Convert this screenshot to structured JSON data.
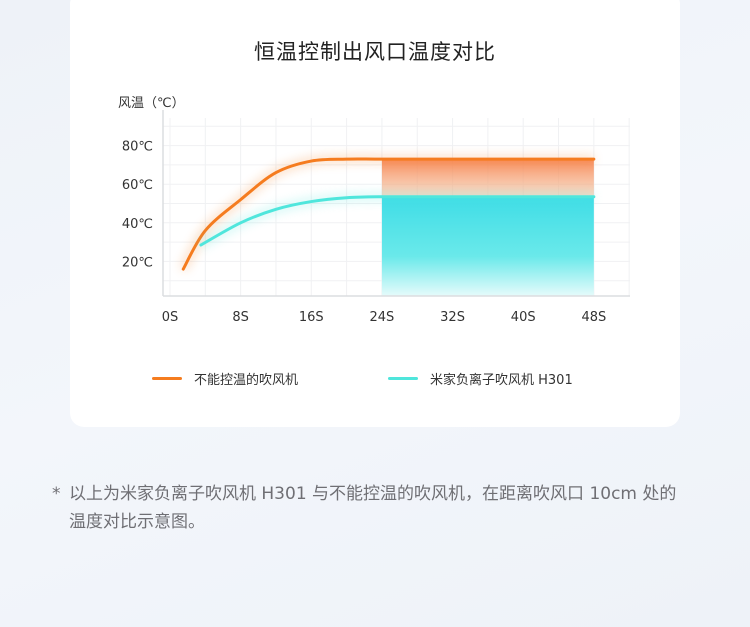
{
  "chart_data": {
    "type": "line",
    "title": "恒温控制出风口温度对比",
    "ylabel": "风温（℃）",
    "xlabel": "",
    "x_ticks": [
      "0S",
      "8S",
      "16S",
      "24S",
      "32S",
      "40S",
      "48S"
    ],
    "x_tick_values": [
      0,
      8,
      16,
      24,
      32,
      40,
      48
    ],
    "y_ticks": [
      "20℃",
      "40℃",
      "60℃",
      "80℃"
    ],
    "y_tick_values": [
      20,
      40,
      60,
      80
    ],
    "xlim": [
      0,
      52
    ],
    "ylim": [
      0,
      90
    ],
    "grid": true,
    "legend_position": "bottom",
    "highlight_range_x": [
      24,
      48
    ],
    "series": [
      {
        "name": "不能控温的吹风机",
        "color": "#f57c1f",
        "x": [
          1.5,
          4,
          8,
          12,
          16,
          20,
          24,
          32,
          40,
          48
        ],
        "y": [
          16,
          36,
          52,
          66,
          72,
          73,
          73,
          73,
          73,
          73
        ]
      },
      {
        "name": "米家负离子吹风机 H301",
        "color": "#4fe6dc",
        "x": [
          3.5,
          8,
          12,
          16,
          20,
          24,
          32,
          40,
          48
        ],
        "y": [
          28.5,
          40,
          47,
          51,
          53,
          53.5,
          53.5,
          53.5,
          53.5
        ]
      }
    ]
  },
  "footnote": {
    "marker": "*",
    "text": "以上为米家负离子吹风机 H301 与不能控温的吹风机，在距离吹风口 10cm 处的温度对比示意图。"
  }
}
